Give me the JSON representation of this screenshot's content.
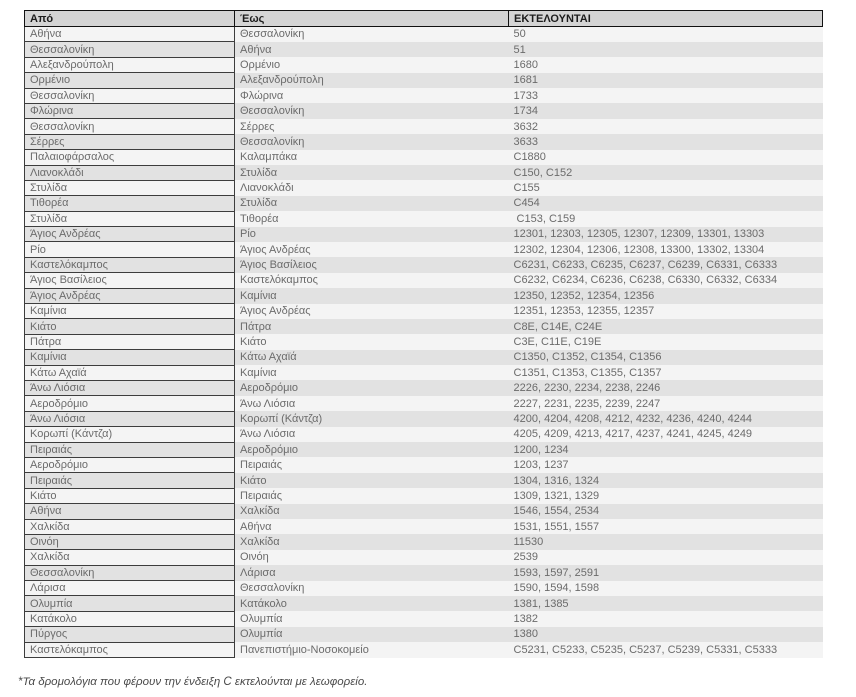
{
  "table": {
    "headers": {
      "from": "Από",
      "to": "Έως",
      "executed": "ΕΚΤΕΛΟΥΝΤΑΙ"
    },
    "rows": [
      {
        "from": "Αθήνα",
        "to": "Θεσσαλονίκη",
        "services": "50"
      },
      {
        "from": "Θεσσαλονίκη",
        "to": "Αθήνα",
        "services": "51"
      },
      {
        "from": "Αλεξανδρούπολη",
        "to": "Ορμένιο",
        "services": "1680"
      },
      {
        "from": "Ορμένιο",
        "to": "Αλεξανδρούπολη",
        "services": "1681"
      },
      {
        "from": "Θεσσαλονίκη",
        "to": "Φλώρινα",
        "services": "1733"
      },
      {
        "from": "Φλώρινα",
        "to": "Θεσσαλονίκη",
        "services": "1734"
      },
      {
        "from": "Θεσσαλονίκη",
        "to": "Σέρρες",
        "services": "3632"
      },
      {
        "from": "Σέρρες",
        "to": "Θεσσαλονίκη",
        "services": "3633"
      },
      {
        "from": "Παλαιοφάρσαλος",
        "to": "Καλαμπάκα",
        "services": "C1880"
      },
      {
        "from": "Λιανοκλάδι",
        "to": "Στυλίδα",
        "services": "C150, C152"
      },
      {
        "from": "Στυλίδα",
        "to": "Λιανοκλάδι",
        "services": "C155"
      },
      {
        "from": "Τιθορέα",
        "to": "Στυλίδα",
        "services": "C454"
      },
      {
        "from": "Στυλίδα",
        "to": "Τιθορέα",
        "services": " C153, C159"
      },
      {
        "from": "Άγιος Ανδρέας",
        "to": "Ρίο",
        "services": "12301, 12303, 12305, 12307, 12309, 13301, 13303"
      },
      {
        "from": "Ρίο",
        "to": "Άγιος Ανδρέας",
        "services": "12302, 12304, 12306, 12308, 13300, 13302, 13304"
      },
      {
        "from": "Καστελόκαμπος",
        "to": "Άγιος Βασίλειος",
        "services": "C6231, C6233, C6235, C6237, C6239, C6331, C6333"
      },
      {
        "from": "Άγιος Βασίλειος",
        "to": "Καστελόκαμπος",
        "services": "C6232, C6234, C6236, C6238, C6330, C6332, C6334"
      },
      {
        "from": "Άγιος Ανδρέας",
        "to": "Καμίνια",
        "services": "12350, 12352, 12354, 12356"
      },
      {
        "from": "Καμίνια",
        "to": "Άγιος Ανδρέας",
        "services": "12351, 12353, 12355, 12357"
      },
      {
        "from": "Κιάτο",
        "to": "Πάτρα",
        "services": "C8E, C14E, C24E"
      },
      {
        "from": "Πάτρα",
        "to": "Κιάτο",
        "services": "C3E, C11E, C19E"
      },
      {
        "from": "Καμίνια",
        "to": "Κάτω Αχαϊά",
        "services": "C1350, C1352, C1354, C1356"
      },
      {
        "from": "Κάτω Αχαϊά",
        "to": "Καμίνια",
        "services": "C1351, C1353, C1355, C1357"
      },
      {
        "from": "Άνω Λιόσια",
        "to": "Αεροδρόμιο",
        "services": "2226, 2230, 2234, 2238, 2246"
      },
      {
        "from": "Αεροδρόμιο",
        "to": "Άνω Λιόσια",
        "services": "2227, 2231, 2235, 2239, 2247"
      },
      {
        "from": "Άνω Λιόσια",
        "to": "Κορωπί (Κάντζα)",
        "services": "4200, 4204, 4208, 4212, 4232, 4236, 4240, 4244"
      },
      {
        "from": "Κορωπί (Κάντζα)",
        "to": "Άνω Λιόσια",
        "services": "4205, 4209, 4213, 4217, 4237, 4241, 4245, 4249"
      },
      {
        "from": "Πειραιάς",
        "to": "Αεροδρόμιο",
        "services": "1200, 1234"
      },
      {
        "from": "Αεροδρόμιο",
        "to": "Πειραιάς",
        "services": "1203, 1237"
      },
      {
        "from": "Πειραιάς",
        "to": "Κιάτο",
        "services": "1304, 1316, 1324"
      },
      {
        "from": "Κιάτο",
        "to": "Πειραιάς",
        "services": "1309, 1321, 1329"
      },
      {
        "from": "Αθήνα",
        "to": "Χαλκίδα",
        "services": "1546, 1554, 2534"
      },
      {
        "from": "Χαλκίδα",
        "to": "Αθήνα",
        "services": "1531, 1551, 1557"
      },
      {
        "from": "Οινόη",
        "to": "Χαλκίδα",
        "services": "11530"
      },
      {
        "from": "Χαλκίδα",
        "to": "Οινόη",
        "services": "2539"
      },
      {
        "from": "Θεσσαλονίκη",
        "to": "Λάρισα",
        "services": "1593, 1597, 2591"
      },
      {
        "from": "Λάρισα",
        "to": "Θεσσαλονίκη",
        "services": "1590, 1594, 1598"
      },
      {
        "from": "Ολυμπία",
        "to": "Κατάκολο",
        "services": "1381, 1385"
      },
      {
        "from": "Κατάκολο",
        "to": "Ολυμπία",
        "services": "1382"
      },
      {
        "from": "Πύργος",
        "to": "Ολυμπία",
        "services": "1380"
      },
      {
        "from": "Καστελόκαμπος",
        "to": "Πανεπιστήμιο-Νοσοκομείο",
        "services": "C5231, C5233, C5235, C5237, C5239, C5331, C5333"
      }
    ]
  },
  "footnote": "*Τα δρομολόγια που φέρουν την ένδειξη C εκτελούνται με λεωφορείο."
}
